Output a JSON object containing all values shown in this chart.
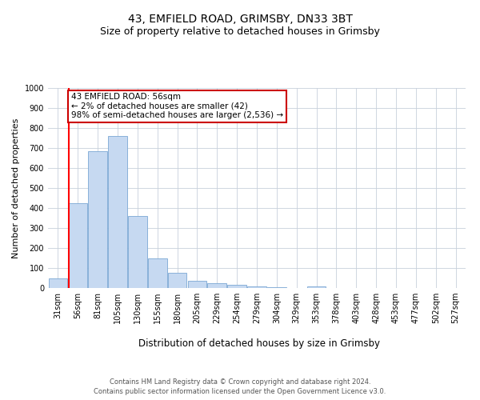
{
  "title": "43, EMFIELD ROAD, GRIMSBY, DN33 3BT",
  "subtitle": "Size of property relative to detached houses in Grimsby",
  "xlabel": "Distribution of detached houses by size in Grimsby",
  "ylabel": "Number of detached properties",
  "categories": [
    "31sqm",
    "56sqm",
    "81sqm",
    "105sqm",
    "130sqm",
    "155sqm",
    "180sqm",
    "205sqm",
    "229sqm",
    "254sqm",
    "279sqm",
    "304sqm",
    "329sqm",
    "353sqm",
    "378sqm",
    "403sqm",
    "428sqm",
    "453sqm",
    "477sqm",
    "502sqm",
    "527sqm"
  ],
  "values": [
    50,
    425,
    685,
    760,
    360,
    150,
    75,
    37,
    25,
    18,
    10,
    5,
    0,
    10,
    0,
    0,
    0,
    0,
    0,
    0,
    0
  ],
  "bar_color": "#c6d9f1",
  "bar_edge_color": "#7ba7d4",
  "red_line_index": 0.55,
  "annotation_line1": "43 EMFIELD ROAD: 56sqm",
  "annotation_line2": "← 2% of detached houses are smaller (42)",
  "annotation_line3": "98% of semi-detached houses are larger (2,536) →",
  "annotation_box_color": "#ffffff",
  "annotation_box_edge": "#cc0000",
  "ylim": [
    0,
    1000
  ],
  "yticks": [
    0,
    100,
    200,
    300,
    400,
    500,
    600,
    700,
    800,
    900,
    1000
  ],
  "footer_line1": "Contains HM Land Registry data © Crown copyright and database right 2024.",
  "footer_line2": "Contains public sector information licensed under the Open Government Licence v3.0.",
  "bg_color": "#ffffff",
  "grid_color": "#c8d0dc",
  "title_fontsize": 10,
  "subtitle_fontsize": 9,
  "tick_fontsize": 7,
  "ylabel_fontsize": 8,
  "xlabel_fontsize": 8.5,
  "footer_fontsize": 6,
  "annotation_fontsize": 7.5
}
